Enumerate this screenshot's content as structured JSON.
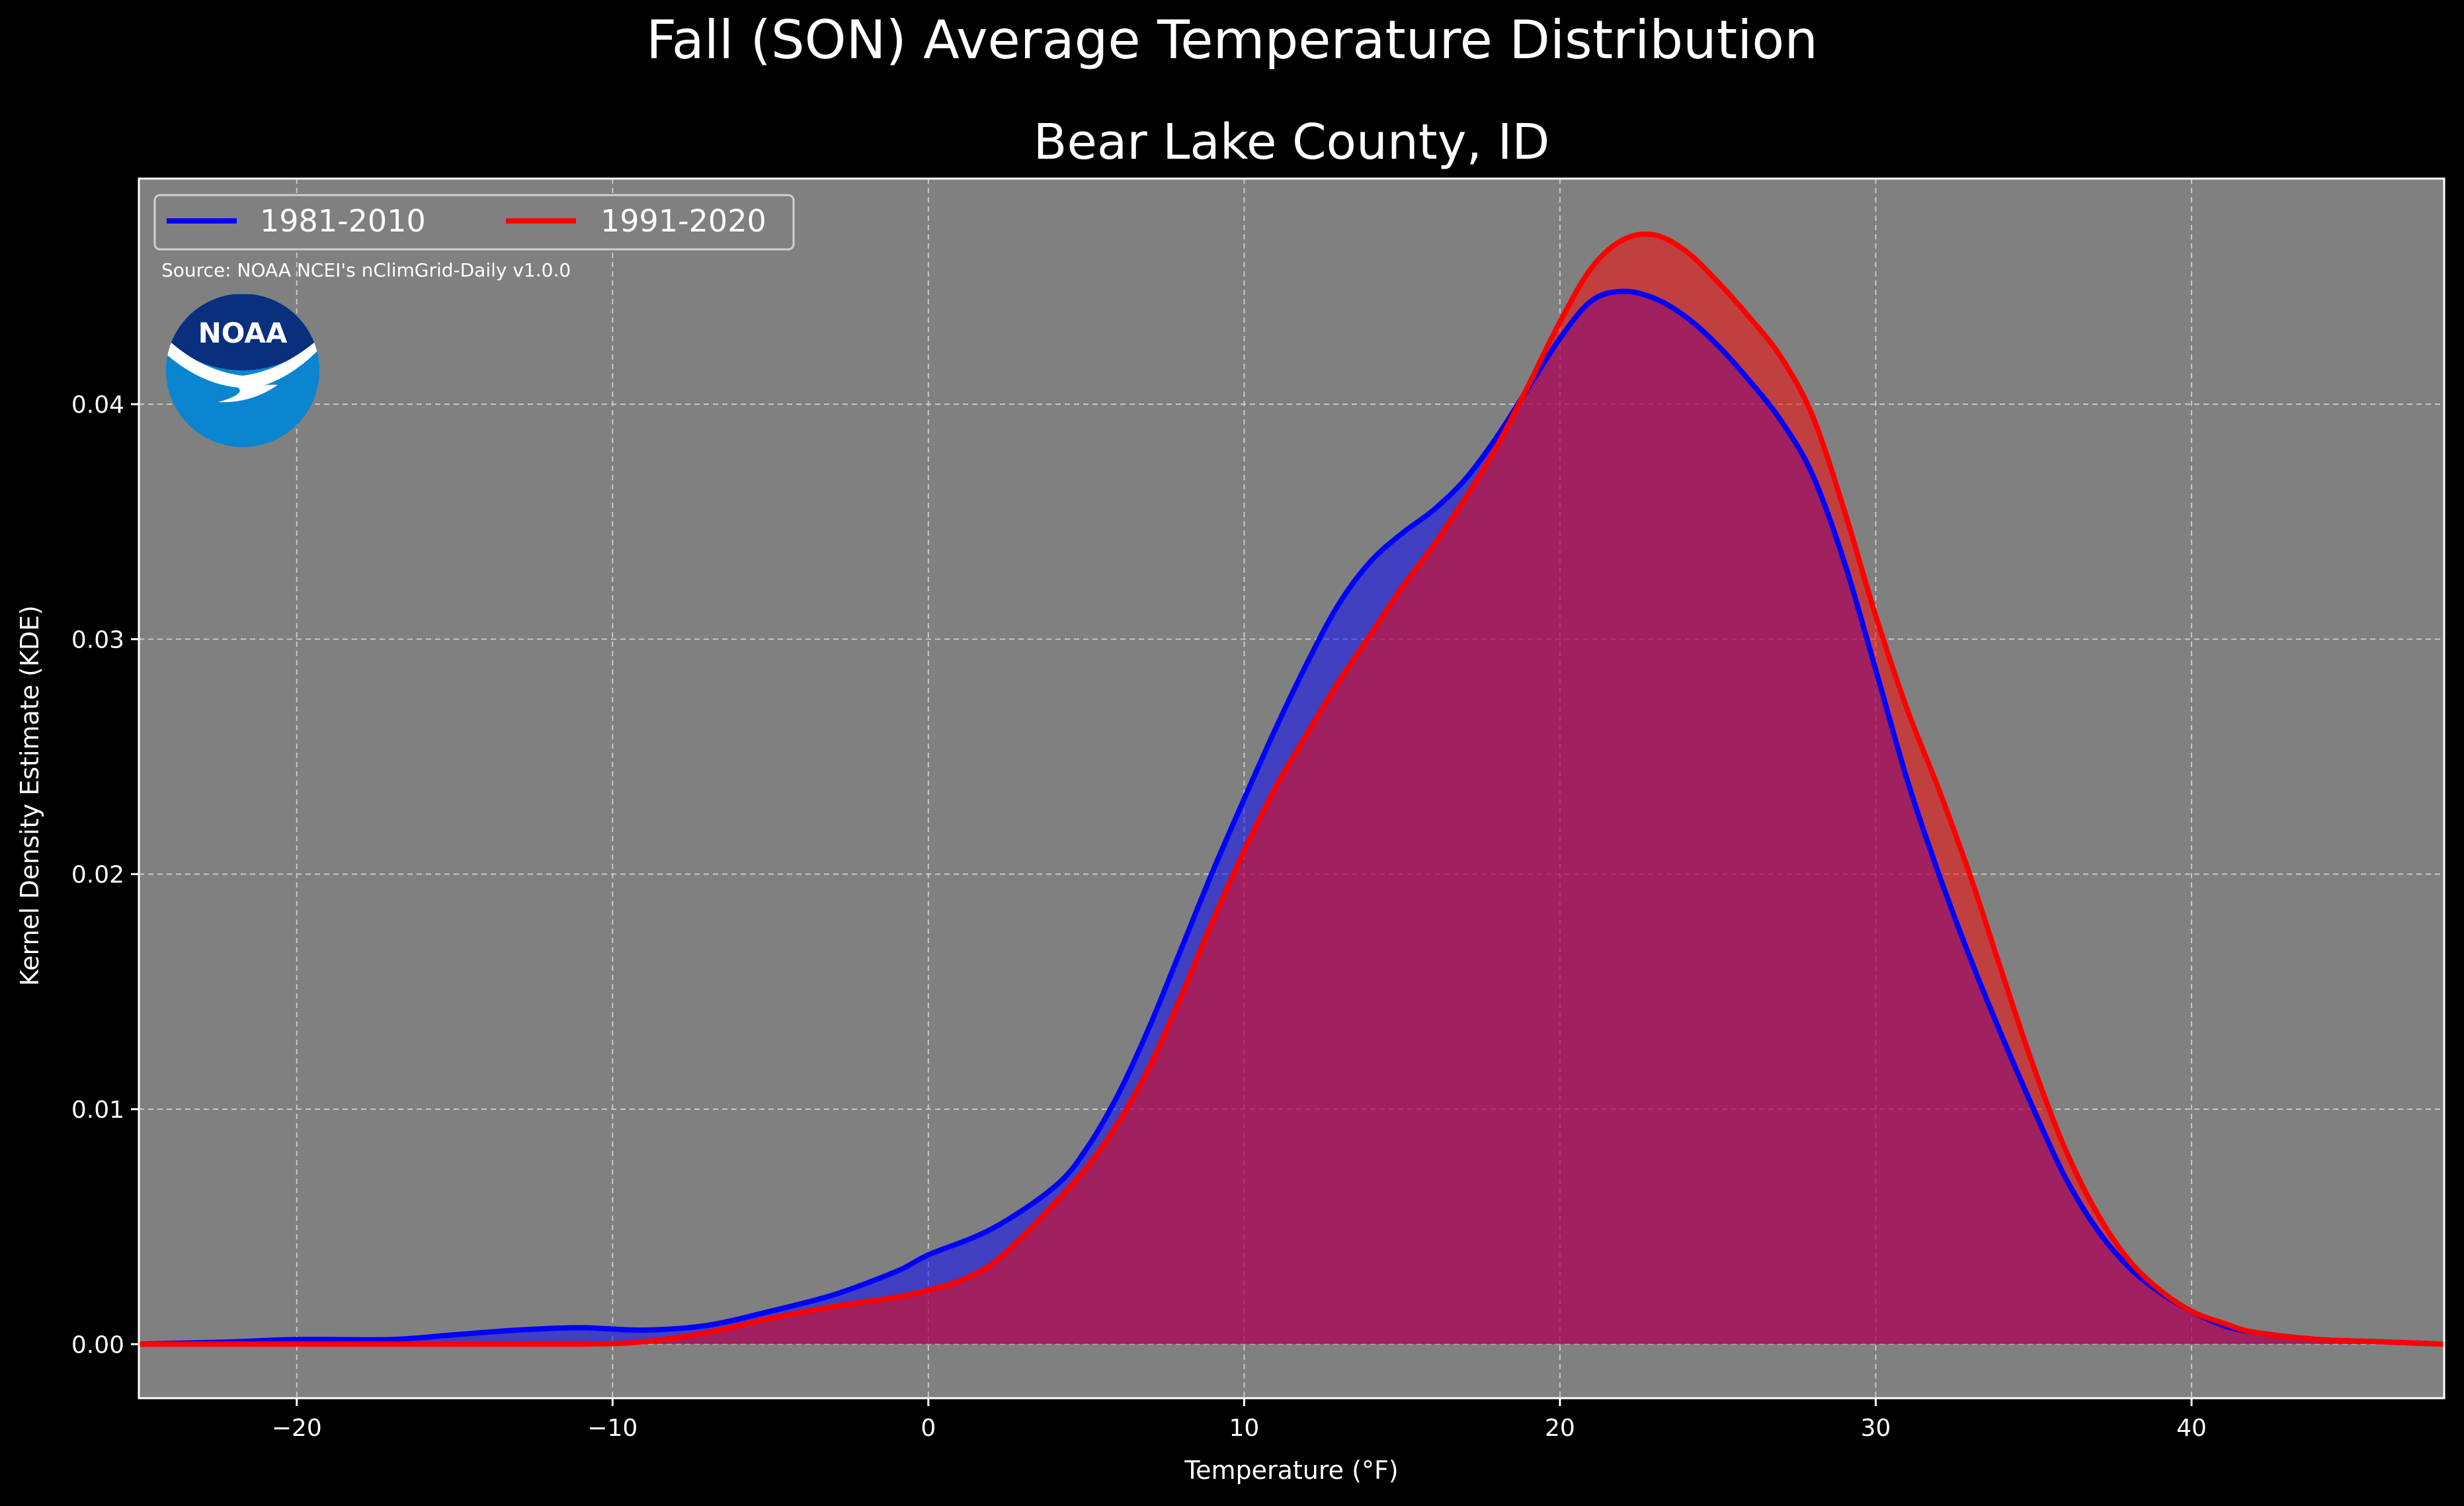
{
  "chart_data": {
    "type": "area",
    "title": "Fall (SON) Average Temperature Distribution",
    "subtitle": "Bear Lake County, ID",
    "xlabel": "Temperature (°F)",
    "ylabel": "Kernel Density Estimate (KDE)",
    "xlim": [
      -25,
      48
    ],
    "ylim": [
      -0.0023,
      0.0496
    ],
    "x_ticks": [
      -20,
      -10,
      0,
      10,
      20,
      30,
      40
    ],
    "x_tick_labels": [
      "−20",
      "−10",
      "0",
      "10",
      "20",
      "30",
      "40"
    ],
    "y_ticks": [
      0.0,
      0.01,
      0.02,
      0.03,
      0.04
    ],
    "y_tick_labels": [
      "0.00",
      "0.01",
      "0.02",
      "0.03",
      "0.04"
    ],
    "grid": true,
    "legend_position": "top-left",
    "background_color": "#808080",
    "figure_color": "#000000",
    "source_note": "Source: NOAA NCEI's nClimGrid-Daily v1.0.0",
    "logo_text": "NOAA",
    "series": [
      {
        "name": "1981-2010",
        "color": "#0000ff",
        "fill": "rgba(0,0,255,0.5)",
        "points": [
          [
            -25,
            0.0
          ],
          [
            -22,
            0.0001
          ],
          [
            -20,
            0.0002
          ],
          [
            -17,
            0.0002
          ],
          [
            -15,
            0.0004
          ],
          [
            -13,
            0.0006
          ],
          [
            -11,
            0.0007
          ],
          [
            -9,
            0.0006
          ],
          [
            -7,
            0.0008
          ],
          [
            -5,
            0.0014
          ],
          [
            -3,
            0.0021
          ],
          [
            -1,
            0.0031
          ],
          [
            0,
            0.0038
          ],
          [
            2,
            0.0049
          ],
          [
            4,
            0.0067
          ],
          [
            5,
            0.0083
          ],
          [
            6,
            0.0106
          ],
          [
            7,
            0.0135
          ],
          [
            8,
            0.0168
          ],
          [
            9,
            0.0201
          ],
          [
            10,
            0.0232
          ],
          [
            11,
            0.0262
          ],
          [
            12,
            0.029
          ],
          [
            13,
            0.0315
          ],
          [
            14,
            0.0333
          ],
          [
            15,
            0.0345
          ],
          [
            16,
            0.0355
          ],
          [
            17,
            0.0368
          ],
          [
            18,
            0.0386
          ],
          [
            19,
            0.0407
          ],
          [
            20,
            0.0428
          ],
          [
            21,
            0.0444
          ],
          [
            22,
            0.0448
          ],
          [
            23,
            0.0445
          ],
          [
            24,
            0.0437
          ],
          [
            25,
            0.0425
          ],
          [
            26,
            0.041
          ],
          [
            27,
            0.0393
          ],
          [
            28,
            0.037
          ],
          [
            29,
            0.0333
          ],
          [
            30,
            0.0287
          ],
          [
            31,
            0.024
          ],
          [
            32,
            0.02
          ],
          [
            33,
            0.0164
          ],
          [
            34,
            0.0131
          ],
          [
            35,
            0.01
          ],
          [
            36,
            0.0071
          ],
          [
            37,
            0.0049
          ],
          [
            38,
            0.0033
          ],
          [
            39,
            0.0022
          ],
          [
            40,
            0.0014
          ],
          [
            41,
            0.0008
          ],
          [
            42,
            0.0005
          ],
          [
            44,
            0.0002
          ],
          [
            46,
            0.0001
          ],
          [
            48,
            0.0
          ]
        ]
      },
      {
        "name": "1991-2020",
        "color": "#ff0000",
        "fill": "rgba(255,0,0,0.5)",
        "points": [
          [
            -25,
            0.0
          ],
          [
            -20,
            0.0
          ],
          [
            -15,
            0.0
          ],
          [
            -11,
            0.0
          ],
          [
            -9,
            0.0001
          ],
          [
            -7,
            0.0005
          ],
          [
            -5,
            0.0011
          ],
          [
            -3,
            0.0016
          ],
          [
            -1,
            0.002
          ],
          [
            0,
            0.0023
          ],
          [
            1,
            0.0027
          ],
          [
            2,
            0.0034
          ],
          [
            3,
            0.0046
          ],
          [
            4,
            0.006
          ],
          [
            5,
            0.0075
          ],
          [
            6,
            0.0094
          ],
          [
            7,
            0.0118
          ],
          [
            8,
            0.0148
          ],
          [
            9,
            0.018
          ],
          [
            10,
            0.021
          ],
          [
            11,
            0.0237
          ],
          [
            12,
            0.026
          ],
          [
            13,
            0.0282
          ],
          [
            14,
            0.0302
          ],
          [
            15,
            0.0322
          ],
          [
            16,
            0.034
          ],
          [
            17,
            0.036
          ],
          [
            18,
            0.0382
          ],
          [
            19,
            0.0408
          ],
          [
            20,
            0.0435
          ],
          [
            21,
            0.0458
          ],
          [
            22,
            0.047
          ],
          [
            23,
            0.0472
          ],
          [
            24,
            0.0465
          ],
          [
            25,
            0.0452
          ],
          [
            26,
            0.0437
          ],
          [
            27,
            0.042
          ],
          [
            28,
            0.0395
          ],
          [
            29,
            0.0355
          ],
          [
            30,
            0.031
          ],
          [
            31,
            0.027
          ],
          [
            32,
            0.0236
          ],
          [
            33,
            0.0199
          ],
          [
            34,
            0.0158
          ],
          [
            35,
            0.0118
          ],
          [
            36,
            0.0083
          ],
          [
            37,
            0.0056
          ],
          [
            38,
            0.0036
          ],
          [
            39,
            0.0023
          ],
          [
            40,
            0.0014
          ],
          [
            41,
            0.0009
          ],
          [
            42,
            0.0005
          ],
          [
            44,
            0.0002
          ],
          [
            46,
            0.0001
          ],
          [
            48,
            0.0
          ]
        ]
      }
    ]
  }
}
